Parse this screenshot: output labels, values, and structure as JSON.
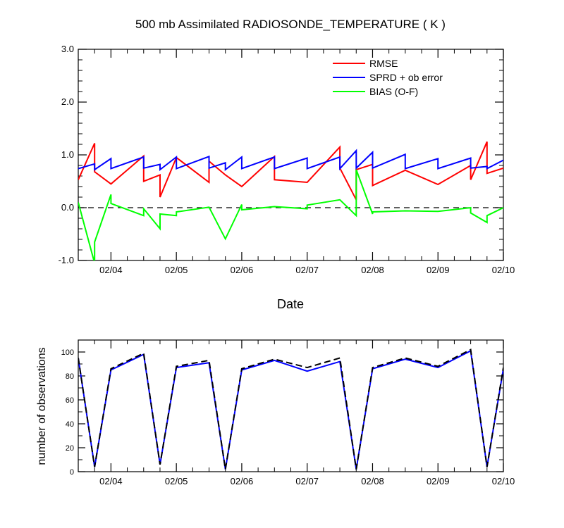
{
  "chart_data": [
    {
      "type": "line",
      "title": "500 mb Assimilated RADIOSONDE_TEMPERATURE ( K )",
      "xlabel": "Date",
      "ylabel": "",
      "xlim": [
        3.5,
        10.0
      ],
      "ylim": [
        -1.0,
        3.0
      ],
      "yticks": [
        "3.0",
        "2.0",
        "1.0",
        "0.0",
        "-1.0"
      ],
      "ytick_values": [
        3.0,
        2.0,
        1.0,
        0.0,
        -1.0
      ],
      "xticks": [
        "02/04",
        "02/05",
        "02/06",
        "02/07",
        "02/08",
        "02/09",
        "02/10"
      ],
      "xtick_values": [
        4,
        5,
        6,
        7,
        8,
        9,
        10
      ],
      "grid": false,
      "legend": "top-right",
      "zero_line": true,
      "series": [
        {
          "name": "RMSE",
          "color": "#ff0000",
          "x": [
            3.5,
            3.75,
            3.75,
            4.0,
            4.5,
            4.5,
            4.75,
            4.75,
            5.0,
            5.5,
            5.5,
            5.75,
            6.0,
            6.5,
            6.5,
            7.0,
            7.5,
            7.5,
            7.75,
            7.75,
            8.0,
            8.0,
            8.5,
            9.0,
            9.5,
            9.5,
            9.75,
            9.75,
            10.0
          ],
          "values": [
            0.53,
            1.22,
            0.68,
            0.45,
            0.98,
            0.5,
            0.62,
            0.2,
            0.95,
            0.48,
            0.88,
            0.62,
            0.4,
            0.97,
            0.53,
            0.48,
            1.15,
            0.75,
            0.15,
            0.72,
            0.82,
            0.42,
            0.71,
            0.44,
            0.8,
            0.53,
            1.25,
            0.65,
            0.75
          ]
        },
        {
          "name": "SPRD + ob error",
          "color": "#0000ff",
          "x": [
            3.5,
            3.75,
            3.75,
            4.0,
            4.0,
            4.5,
            4.5,
            4.75,
            4.75,
            5.0,
            5.0,
            5.5,
            5.5,
            5.75,
            5.75,
            6.0,
            6.0,
            6.5,
            6.5,
            7.0,
            7.0,
            7.5,
            7.5,
            7.75,
            7.75,
            8.0,
            8.0,
            8.5,
            8.5,
            9.0,
            9.0,
            9.5,
            9.5,
            9.75,
            9.75,
            10.0
          ],
          "values": [
            0.74,
            0.83,
            0.72,
            0.93,
            0.74,
            0.96,
            0.75,
            0.82,
            0.72,
            0.96,
            0.74,
            0.97,
            0.75,
            0.85,
            0.72,
            0.96,
            0.74,
            0.96,
            0.74,
            0.94,
            0.74,
            0.96,
            0.74,
            1.08,
            0.75,
            1.05,
            0.75,
            1.01,
            0.74,
            0.93,
            0.74,
            0.94,
            0.75,
            0.78,
            0.74,
            0.9
          ]
        },
        {
          "name": "BIAS (O-F)",
          "color": "#00ff00",
          "x": [
            3.5,
            3.75,
            3.75,
            4.0,
            4.0,
            4.5,
            4.5,
            4.75,
            4.75,
            5.0,
            5.0,
            5.5,
            5.75,
            6.0,
            6.0,
            6.5,
            7.0,
            7.0,
            7.5,
            7.75,
            7.75,
            8.0,
            8.0,
            8.5,
            9.0,
            9.5,
            9.5,
            9.75,
            9.75,
            10.0
          ],
          "values": [
            0.1,
            -1.05,
            -0.65,
            0.25,
            0.08,
            -0.15,
            -0.02,
            -0.4,
            -0.12,
            -0.15,
            -0.08,
            0.01,
            -0.59,
            0.06,
            -0.04,
            0.02,
            -0.02,
            0.05,
            0.15,
            -0.15,
            0.72,
            -0.12,
            -0.08,
            -0.06,
            -0.07,
            0.0,
            -0.1,
            -0.28,
            -0.15,
            0.0
          ]
        }
      ]
    },
    {
      "type": "line",
      "title": "",
      "xlabel": "",
      "ylabel": "number of observations",
      "xlim": [
        3.5,
        10.0
      ],
      "ylim": [
        0,
        110
      ],
      "yticks": [
        "100",
        "80",
        "60",
        "40",
        "20",
        "0"
      ],
      "ytick_values": [
        100,
        80,
        60,
        40,
        20,
        0
      ],
      "xticks": [
        "02/04",
        "02/05",
        "02/06",
        "02/07",
        "02/08",
        "02/09",
        "02/10"
      ],
      "xtick_values": [
        4,
        5,
        6,
        7,
        8,
        9,
        10
      ],
      "grid": false,
      "legend": "none",
      "series": [
        {
          "color": "#0000ff",
          "style": "solid",
          "x": [
            3.5,
            3.75,
            4.0,
            4.5,
            4.75,
            5.0,
            5.5,
            5.75,
            6.0,
            6.5,
            7.0,
            7.5,
            7.75,
            8.0,
            8.5,
            9.0,
            9.5,
            9.75,
            10.0
          ],
          "values": [
            95,
            4,
            85,
            98,
            6,
            87,
            91,
            2,
            85,
            93,
            84,
            92,
            2,
            86,
            94,
            87,
            101,
            4,
            86
          ]
        },
        {
          "color": "#000000",
          "style": "dashed",
          "x": [
            3.5,
            3.75,
            4.0,
            4.5,
            4.75,
            5.0,
            5.5,
            5.75,
            6.0,
            6.5,
            7.0,
            7.5,
            7.75,
            8.0,
            8.5,
            9.0,
            9.5,
            9.75,
            10.0
          ],
          "values": [
            95,
            4,
            86,
            99,
            6,
            88,
            93,
            2,
            86,
            94,
            87,
            95,
            2,
            87,
            95,
            88,
            102,
            4,
            87
          ]
        }
      ]
    }
  ]
}
